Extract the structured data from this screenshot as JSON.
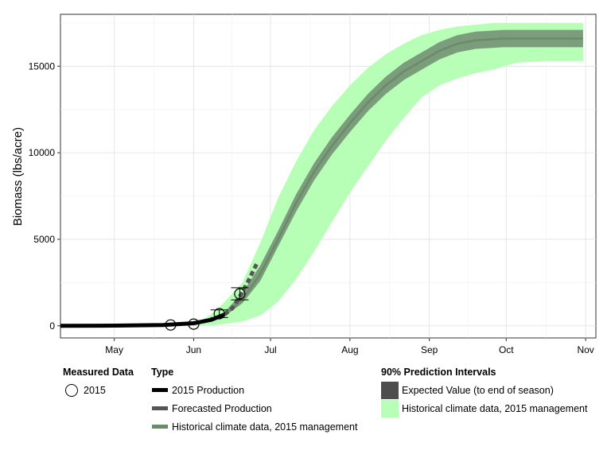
{
  "chart_data": {
    "type": "line",
    "ylabel": "Biomass (lbs/acre)",
    "xlabel": "",
    "xlim": [
      "2015-04-10",
      "2015-11-05"
    ],
    "ylim": [
      -700,
      18000
    ],
    "yticks": [
      0,
      5000,
      10000,
      15000
    ],
    "xticks": [
      {
        "date": "2015-05-01",
        "label": "May"
      },
      {
        "date": "2015-06-01",
        "label": "Jun"
      },
      {
        "date": "2015-07-01",
        "label": "Jul"
      },
      {
        "date": "2015-08-01",
        "label": "Aug"
      },
      {
        "date": "2015-09-01",
        "label": "Sep"
      },
      {
        "date": "2015-10-01",
        "label": "Oct"
      },
      {
        "date": "2015-11-01",
        "label": "Nov"
      }
    ],
    "grid": true,
    "legend_position": "bottom",
    "series": [
      {
        "name": "2015 Production",
        "x": [
          "2015-04-10",
          "2015-05-01",
          "2015-05-20",
          "2015-06-01",
          "2015-06-08",
          "2015-06-13"
        ],
        "y": [
          0,
          10,
          50,
          150,
          350,
          650
        ]
      },
      {
        "name": "Forecasted Production",
        "x": [
          "2015-06-13",
          "2015-06-16",
          "2015-06-19",
          "2015-06-22",
          "2015-06-26"
        ],
        "y": [
          650,
          1000,
          1700,
          2500,
          3700
        ]
      },
      {
        "name": "Historical climate data, 2015 management",
        "x": [
          "2015-06-13",
          "2015-06-20",
          "2015-06-27",
          "2015-07-04",
          "2015-07-11",
          "2015-07-18",
          "2015-07-25",
          "2015-08-01",
          "2015-08-08",
          "2015-08-15",
          "2015-08-22",
          "2015-08-29",
          "2015-09-05",
          "2015-09-12",
          "2015-09-19",
          "2015-09-30",
          "2015-10-31"
        ],
        "y": [
          650,
          1500,
          3000,
          5000,
          7100,
          8900,
          10400,
          11700,
          12900,
          13900,
          14700,
          15300,
          15900,
          16300,
          16500,
          16600,
          16600
        ]
      }
    ],
    "intervals": [
      {
        "name": "Historical climate data, 2015 management",
        "x": [
          "2015-06-01",
          "2015-06-10",
          "2015-06-20",
          "2015-06-27",
          "2015-07-04",
          "2015-07-11",
          "2015-07-18",
          "2015-07-25",
          "2015-08-01",
          "2015-08-08",
          "2015-08-15",
          "2015-08-22",
          "2015-08-29",
          "2015-09-05",
          "2015-09-12",
          "2015-09-19",
          "2015-09-26",
          "2015-10-05",
          "2015-10-15",
          "2015-10-31"
        ],
        "lower": [
          0,
          50,
          250,
          600,
          1400,
          2700,
          4300,
          6000,
          7700,
          9200,
          10700,
          12000,
          13200,
          13900,
          14300,
          14600,
          14800,
          15200,
          15300,
          15300
        ],
        "upper": [
          0,
          900,
          2500,
          4800,
          7400,
          9500,
          11300,
          12700,
          13900,
          14900,
          15700,
          16300,
          16800,
          17100,
          17300,
          17400,
          17500,
          17500,
          17500,
          17500
        ]
      },
      {
        "name": "Expected Value (to end of season)",
        "x": [
          "2015-06-13",
          "2015-06-20",
          "2015-06-27",
          "2015-07-04",
          "2015-07-11",
          "2015-07-18",
          "2015-07-25",
          "2015-08-01",
          "2015-08-08",
          "2015-08-15",
          "2015-08-22",
          "2015-08-29",
          "2015-09-05",
          "2015-09-12",
          "2015-09-19",
          "2015-09-30",
          "2015-10-31"
        ],
        "lower": [
          550,
          1300,
          2600,
          4600,
          6600,
          8400,
          9900,
          11200,
          12400,
          13400,
          14200,
          14800,
          15400,
          15800,
          16000,
          16100,
          16100
        ],
        "upper": [
          800,
          1900,
          3500,
          5500,
          7600,
          9400,
          10900,
          12200,
          13400,
          14400,
          15200,
          15800,
          16400,
          16800,
          17000,
          17100,
          17100
        ]
      }
    ],
    "measured_data": {
      "name": "2015",
      "points": [
        {
          "x": "2015-05-23",
          "y": 50,
          "err": 0
        },
        {
          "x": "2015-06-01",
          "y": 100,
          "err": 0
        },
        {
          "x": "2015-06-11",
          "y": 700,
          "err": 220
        },
        {
          "x": "2015-06-19",
          "y": 1850,
          "err": 350
        }
      ]
    }
  },
  "legend": {
    "measured": {
      "title": "Measured Data",
      "items": [
        {
          "label": "2015"
        }
      ]
    },
    "type": {
      "title": "Type",
      "items": [
        {
          "label": "2015 Production",
          "style": "solid",
          "color": "#000000"
        },
        {
          "label": "Forecasted Production",
          "style": "dashed",
          "color": "#555555"
        },
        {
          "label": "Historical climate data, 2015 management",
          "style": "solid",
          "color": "#6a8a6a"
        }
      ]
    },
    "intervals": {
      "title": "90% Prediction Intervals",
      "items": [
        {
          "label": "Expected Value (to end of season)",
          "color": "#4d4d4d"
        },
        {
          "label": "Historical climate data, 2015 management",
          "color": "#b7ffb7"
        }
      ]
    }
  },
  "colors": {
    "historical_band": "#b7ffb7",
    "expected_band": "#4d4d4d",
    "production": "#000000",
    "forecast": "#555555",
    "historical_line": "#6a8a6a"
  }
}
